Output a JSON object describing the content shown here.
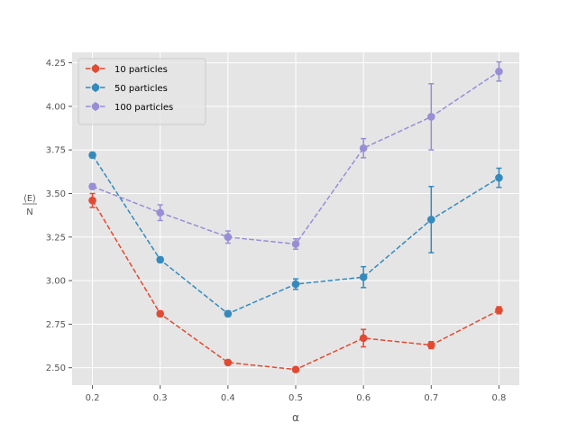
{
  "chart_data": {
    "type": "line",
    "style": "errorbar-dashed-markers",
    "xlabel": "α",
    "ylabel_numerator": "⟨E⟩",
    "ylabel_denominator": "N",
    "xlim": [
      0.17,
      0.83
    ],
    "ylim": [
      2.4,
      4.31
    ],
    "x": [
      0.2,
      0.3,
      0.4,
      0.5,
      0.6,
      0.7,
      0.8
    ],
    "x_ticks": [
      0.2,
      0.3,
      0.4,
      0.5,
      0.6,
      0.7,
      0.8
    ],
    "x_tick_labels": [
      "0.2",
      "0.3",
      "0.4",
      "0.5",
      "0.6",
      "0.7",
      "0.8"
    ],
    "y_ticks": [
      2.5,
      2.75,
      3.0,
      3.25,
      3.5,
      3.75,
      4.0,
      4.25
    ],
    "y_tick_labels": [
      "2.50",
      "2.75",
      "3.00",
      "3.25",
      "3.50",
      "3.75",
      "4.00",
      "4.25"
    ],
    "grid": true,
    "legend_position": "top-left",
    "background": "#e5e5e5",
    "series": [
      {
        "name": "10 particles",
        "color": "#e24a33",
        "values": [
          3.46,
          2.81,
          2.53,
          2.49,
          2.67,
          2.63,
          2.83
        ],
        "errors": [
          0.04,
          0.015,
          0.01,
          0.01,
          0.05,
          0.02,
          0.02
        ]
      },
      {
        "name": "50 particles",
        "color": "#348abd",
        "values": [
          3.72,
          3.12,
          2.81,
          2.98,
          3.02,
          3.35,
          3.59
        ],
        "errors": [
          0.015,
          0.015,
          0.015,
          0.03,
          0.06,
          0.19,
          0.055
        ]
      },
      {
        "name": "100 particles",
        "color": "#988ed5",
        "values": [
          3.54,
          3.39,
          3.25,
          3.21,
          3.76,
          3.94,
          4.2
        ],
        "errors": [
          0.015,
          0.045,
          0.035,
          0.03,
          0.055,
          0.19,
          0.055
        ]
      }
    ]
  }
}
